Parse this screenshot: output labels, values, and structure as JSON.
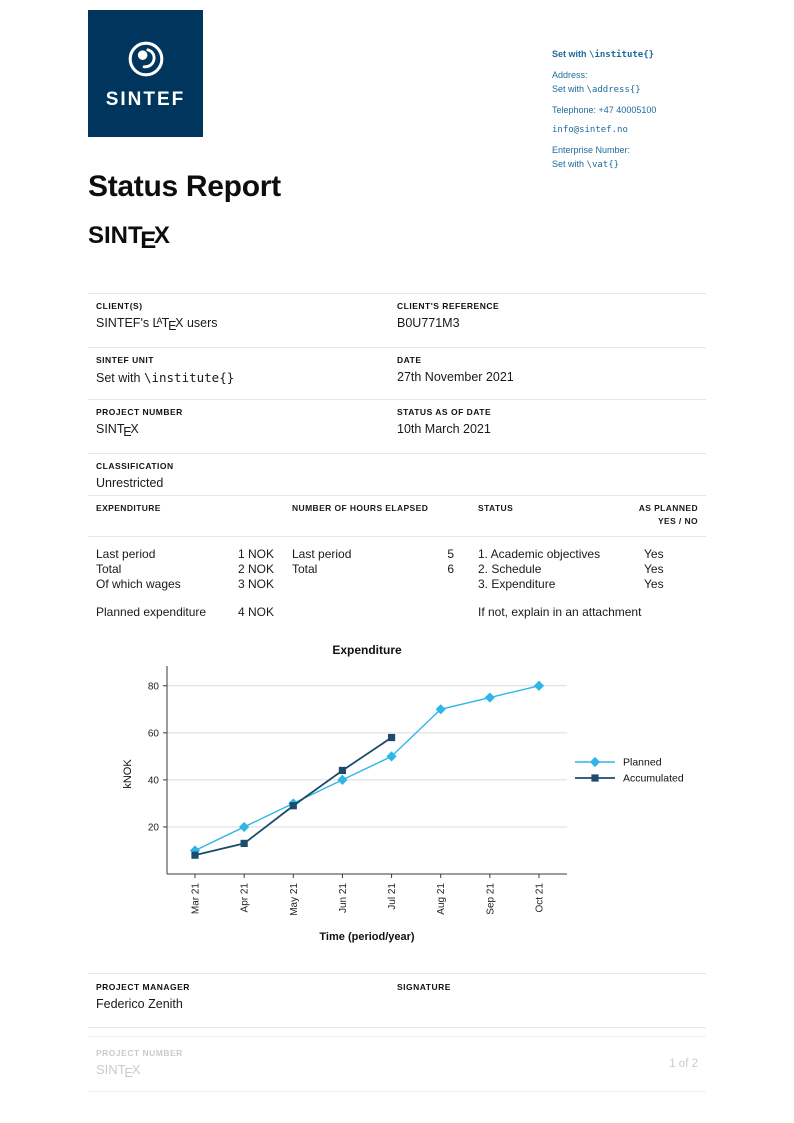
{
  "colors": {
    "sintef_navy": "#00365e",
    "contact_blue": "#1e6a9e",
    "planned_cyan": "#2fb5e8",
    "accumulated_navy": "#1c4c6c",
    "divider_grey": "#e6e6e6",
    "footer_grey": "#c7ccd0"
  },
  "logo": {
    "wordmark": "SINTEF"
  },
  "contact": {
    "line1_bold": "Set with",
    "line1_code": "\\institute{}",
    "address_label": "Address:",
    "address_prefix": "Set with",
    "address_code": "\\address{}",
    "telephone": "Telephone: +47  40005100",
    "email": "info@sintef.no",
    "enterprise_label": "Enterprise Number:",
    "vat_prefix": "Set with",
    "vat_code": "\\vat{}"
  },
  "title": "Status Report",
  "project_name": {
    "p1": "SINT",
    "e": "E",
    "p2": "X"
  },
  "info": {
    "client_label": "CLIENT(S)",
    "client_p1": "SINTEF's L",
    "client_a": "A",
    "client_t": "T",
    "client_e": "E",
    "client_x": "X",
    "client_p2": " users",
    "client_ref_label": "CLIENT'S REFERENCE",
    "client_ref": "B0U771M3",
    "unit_label": "SINTEF UNIT",
    "unit_prefix": "Set with",
    "unit_code": "\\institute{}",
    "date_label": "DATE",
    "date": "27th November 2021",
    "project_number_label": "PROJECT NUMBER",
    "status_date_label": "STATUS AS OF DATE",
    "status_date": "10th March 2021",
    "classification_label": "CLASSIFICATION",
    "classification": "Unrestricted"
  },
  "table": {
    "h_expenditure": "EXPENDITURE",
    "h_hours": "NUMBER OF HOURS ELAPSED",
    "h_status": "STATUS",
    "h_planned1": "AS PLANNED",
    "h_planned2": "YES / NO",
    "exp_rows": [
      {
        "label": "Last period",
        "value": "1 NOK"
      },
      {
        "label": "Total",
        "value": "2 NOK"
      },
      {
        "label": "Of which wages",
        "value": "3 NOK"
      }
    ],
    "exp_planned": {
      "label": "Planned expenditure",
      "value": "4 NOK"
    },
    "hours_rows": [
      {
        "label": "Last period",
        "value": "5"
      },
      {
        "label": "Total",
        "value": "6"
      }
    ],
    "status_rows": [
      "1. Academic objectives",
      "2. Schedule",
      "3. Expenditure"
    ],
    "yes_values": [
      "Yes",
      "Yes",
      "Yes"
    ],
    "note": "If not, explain in an attachment"
  },
  "chart_data": {
    "type": "line",
    "title": "Expenditure",
    "xlabel": "Time (period/year)",
    "ylabel": "kNOK",
    "categories": [
      "Mar 21",
      "Apr 21",
      "May 21",
      "Jun 21",
      "Jul 21",
      "Aug 21",
      "Sep 21",
      "Oct 21"
    ],
    "series": [
      {
        "name": "Planned",
        "marker": "diamond",
        "color": "#2fb5e8",
        "values": [
          10,
          20,
          30,
          40,
          50,
          70,
          75,
          80
        ]
      },
      {
        "name": "Accumulated",
        "marker": "square",
        "color": "#1c4c6c",
        "values": [
          8,
          13,
          29,
          44,
          58,
          null,
          null,
          null
        ]
      }
    ],
    "ylim": [
      0,
      85
    ],
    "yticks": [
      20,
      40,
      60,
      80
    ],
    "grid": "horizontal",
    "legend_position": "right"
  },
  "signature": {
    "manager_label": "PROJECT MANAGER",
    "manager_name": "Federico Zenith",
    "signature_label": "SIGNATURE"
  },
  "footer": {
    "label": "PROJECT NUMBER",
    "page": "1 of 2"
  }
}
